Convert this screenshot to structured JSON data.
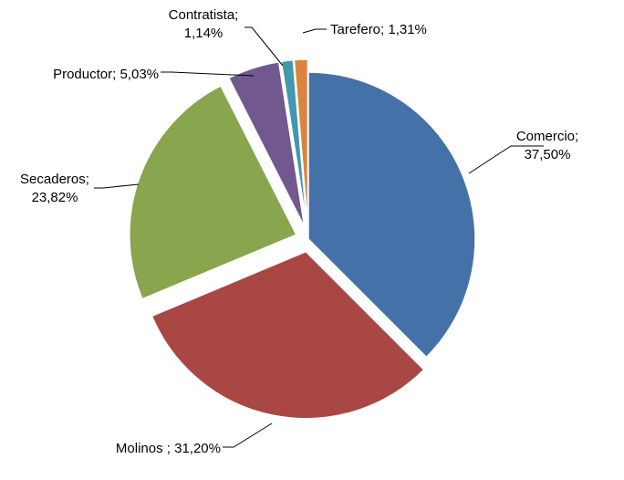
{
  "chart_data": {
    "type": "pie",
    "title": "",
    "start_angle_deg": 0,
    "direction": "clockwise",
    "slices": [
      {
        "name": "Comercio",
        "value": 37.5,
        "label_lines": [
          "Comercio;",
          "37,50%"
        ],
        "color": "#4472A8",
        "exploded": false
      },
      {
        "name": "Molinos",
        "value": 31.2,
        "label_lines": [
          "Molinos ; 31,20%"
        ],
        "color": "#A94744",
        "exploded": true
      },
      {
        "name": "Secaderos",
        "value": 23.82,
        "label_lines": [
          "Secaderos;",
          "23,82%"
        ],
        "color": "#89A54E",
        "exploded": true
      },
      {
        "name": "Productor",
        "value": 5.03,
        "label_lines": [
          "Productor; 5,03%"
        ],
        "color": "#71588F",
        "exploded": true
      },
      {
        "name": "Contratista",
        "value": 1.14,
        "label_lines": [
          "Contratista;",
          "1,14%"
        ],
        "color": "#4198AF",
        "exploded": true
      },
      {
        "name": "Tarefero",
        "value": 1.31,
        "label_lines": [
          "Tarefero; 1,31%"
        ],
        "color": "#DB843D",
        "exploded": true
      }
    ]
  }
}
